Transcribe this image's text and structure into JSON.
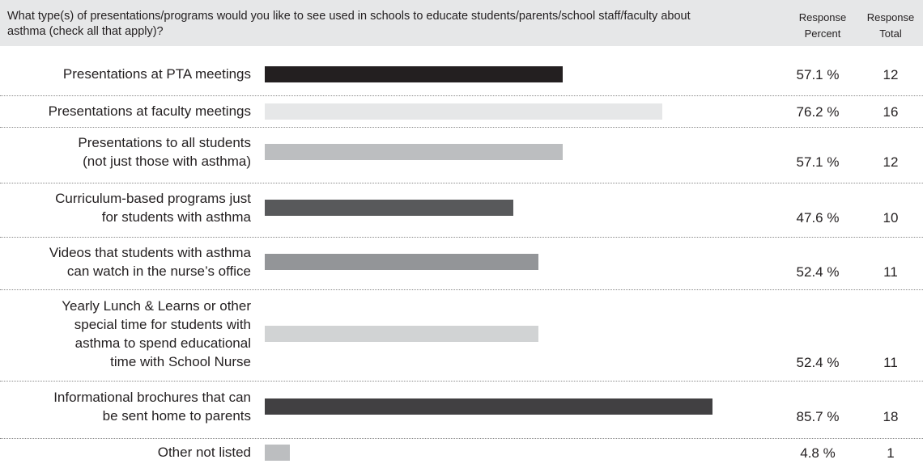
{
  "question": "What type(s) of presentations/programs would you like to see used in schools to educate students/parents/school staff/faculty about asthma (check all that apply)?",
  "headers": {
    "response_percent": "Response Percent",
    "response_total": "Response Total"
  },
  "chart_data": {
    "type": "bar",
    "orientation": "horizontal",
    "categories": [
      "Presentations at PTA meetings",
      "Presentations at faculty meetings",
      "Presentations to all students (not just those with asthma)",
      "Curriculum-based programs just for students with asthma",
      "Videos that students with asthma can watch in the nurse’s office",
      "Yearly Lunch & Learns or other special time for students with asthma to spend educational time with School Nurse",
      "Informational brochures that can be sent home to parents",
      "Other not listed"
    ],
    "label_lines": [
      [
        "Presentations at PTA meetings"
      ],
      [
        "Presentations at faculty meetings"
      ],
      [
        "Presentations to all students",
        "(not just those with asthma)"
      ],
      [
        "Curriculum-based programs just",
        "for students with asthma"
      ],
      [
        "Videos that students with asthma",
        "can watch in the nurse’s office"
      ],
      [
        "Yearly Lunch & Learns or other",
        "special time for students with",
        "asthma to spend educational",
        "time with School Nurse"
      ],
      [
        "Informational brochures that can",
        "be sent home to parents"
      ],
      [
        "Other not listed"
      ]
    ],
    "values": [
      57.1,
      76.2,
      57.1,
      47.6,
      52.4,
      52.4,
      85.7,
      4.8
    ],
    "percent_labels": [
      "57.1 %",
      "76.2 %",
      "57.1 %",
      "47.6 %",
      "52.4 %",
      "52.4 %",
      "85.7 %",
      "4.8 %"
    ],
    "totals": [
      12,
      16,
      12,
      10,
      11,
      11,
      18,
      1
    ],
    "bar_colors": [
      "#231f20",
      "#e6e7e8",
      "#bcbec0",
      "#58595b",
      "#939598",
      "#d1d3d4",
      "#414042",
      "#bcbec0"
    ],
    "xlim": [
      0,
      100
    ]
  }
}
